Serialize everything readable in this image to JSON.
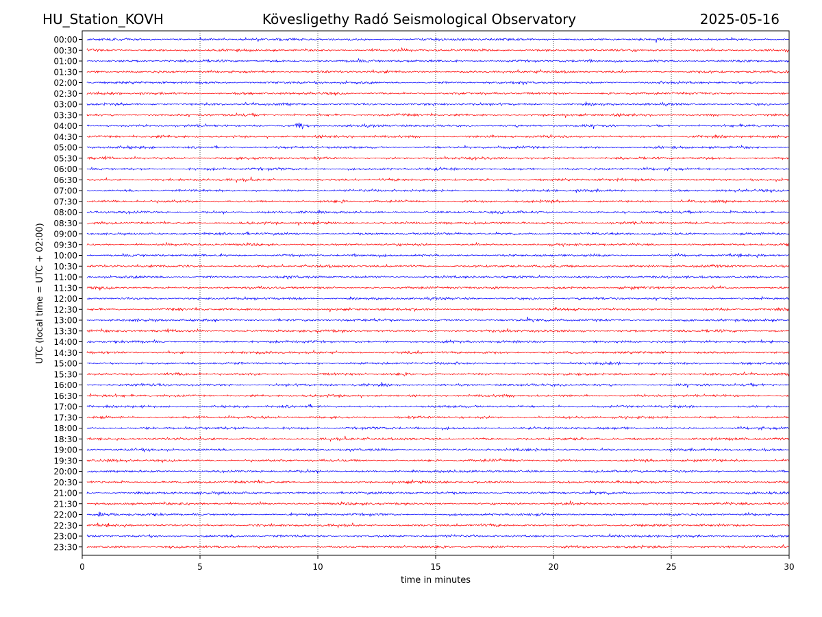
{
  "header": {
    "station": "HU_Station_KOVH",
    "observatory": "Kövesligethy Radó Seismological Observatory",
    "date": "2025-05-16"
  },
  "chart_data": {
    "type": "line",
    "xlabel": "time in minutes",
    "ylabel": "UTC (local time = UTC + 02:00)",
    "xlim": [
      0,
      30
    ],
    "x_ticks": [
      "0",
      "5",
      "10",
      "15",
      "20",
      "25",
      "30"
    ],
    "grid": "vertical dotted lines every 5 minutes",
    "trace_colors": [
      "#0000ff",
      "#ff0000"
    ],
    "rows": [
      "00:00",
      "00:30",
      "01:00",
      "01:30",
      "02:00",
      "02:30",
      "03:00",
      "03:30",
      "04:00",
      "04:30",
      "05:00",
      "05:30",
      "06:00",
      "06:30",
      "07:00",
      "07:30",
      "08:00",
      "08:30",
      "09:00",
      "09:30",
      "10:00",
      "10:30",
      "11:00",
      "11:30",
      "12:00",
      "12:30",
      "13:00",
      "13:30",
      "14:00",
      "14:30",
      "15:00",
      "15:30",
      "16:00",
      "16:30",
      "17:00",
      "17:30",
      "18:00",
      "18:30",
      "19:00",
      "19:30",
      "20:00",
      "20:30",
      "21:00",
      "21:30",
      "22:00",
      "22:30",
      "23:00",
      "23:30"
    ],
    "events": [
      {
        "row": "04:00",
        "minute": 9.1
      },
      {
        "row": "22:00",
        "minute": 0.7
      }
    ]
  }
}
